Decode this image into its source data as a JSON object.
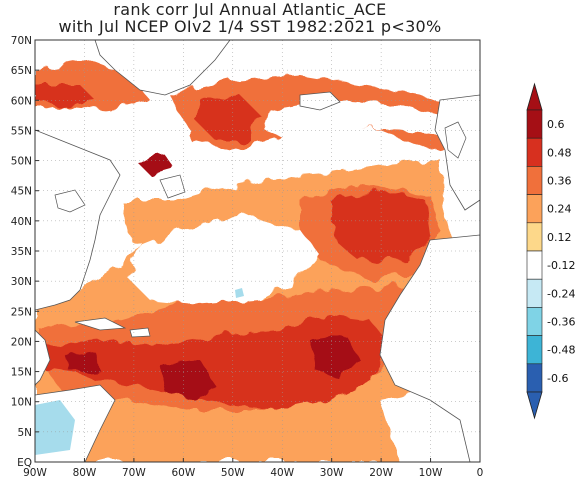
{
  "title": {
    "line1": "rank corr Jul  Annual Atlantic_ACE",
    "line2": "with Jul NCEP OIv2 1/4 SST 1982:2021 p<30%"
  },
  "axes": {
    "lat_labels": [
      "EQ",
      "5N",
      "10N",
      "15N",
      "20N",
      "25N",
      "30N",
      "35N",
      "40N",
      "45N",
      "50N",
      "55N",
      "60N",
      "65N",
      "70N"
    ],
    "lon_labels": [
      "90W",
      "80W",
      "70W",
      "60W",
      "50W",
      "40W",
      "30W",
      "20W",
      "10W",
      "0"
    ]
  },
  "colorbar": {
    "labels": [
      "0.6",
      "0.48",
      "0.36",
      "0.24",
      "0.12",
      "-0.12",
      "-0.24",
      "-0.36",
      "-0.48",
      "-0.6"
    ],
    "colors": [
      "#a50f15",
      "#d7301f",
      "#f0703b",
      "#fca25a",
      "#fdd88a",
      "#ffffff",
      "#c6e9f4",
      "#7fd3e6",
      "#3db4d6",
      "#2a5fb0"
    ]
  },
  "legend_map": {
    "strong_positive": "#d7301f",
    "positive": "#f0703b",
    "weak_positive": "#fca25a",
    "very_strong": "#a50f15",
    "negative": "#a6dcec",
    "land_outline": "#555555"
  }
}
